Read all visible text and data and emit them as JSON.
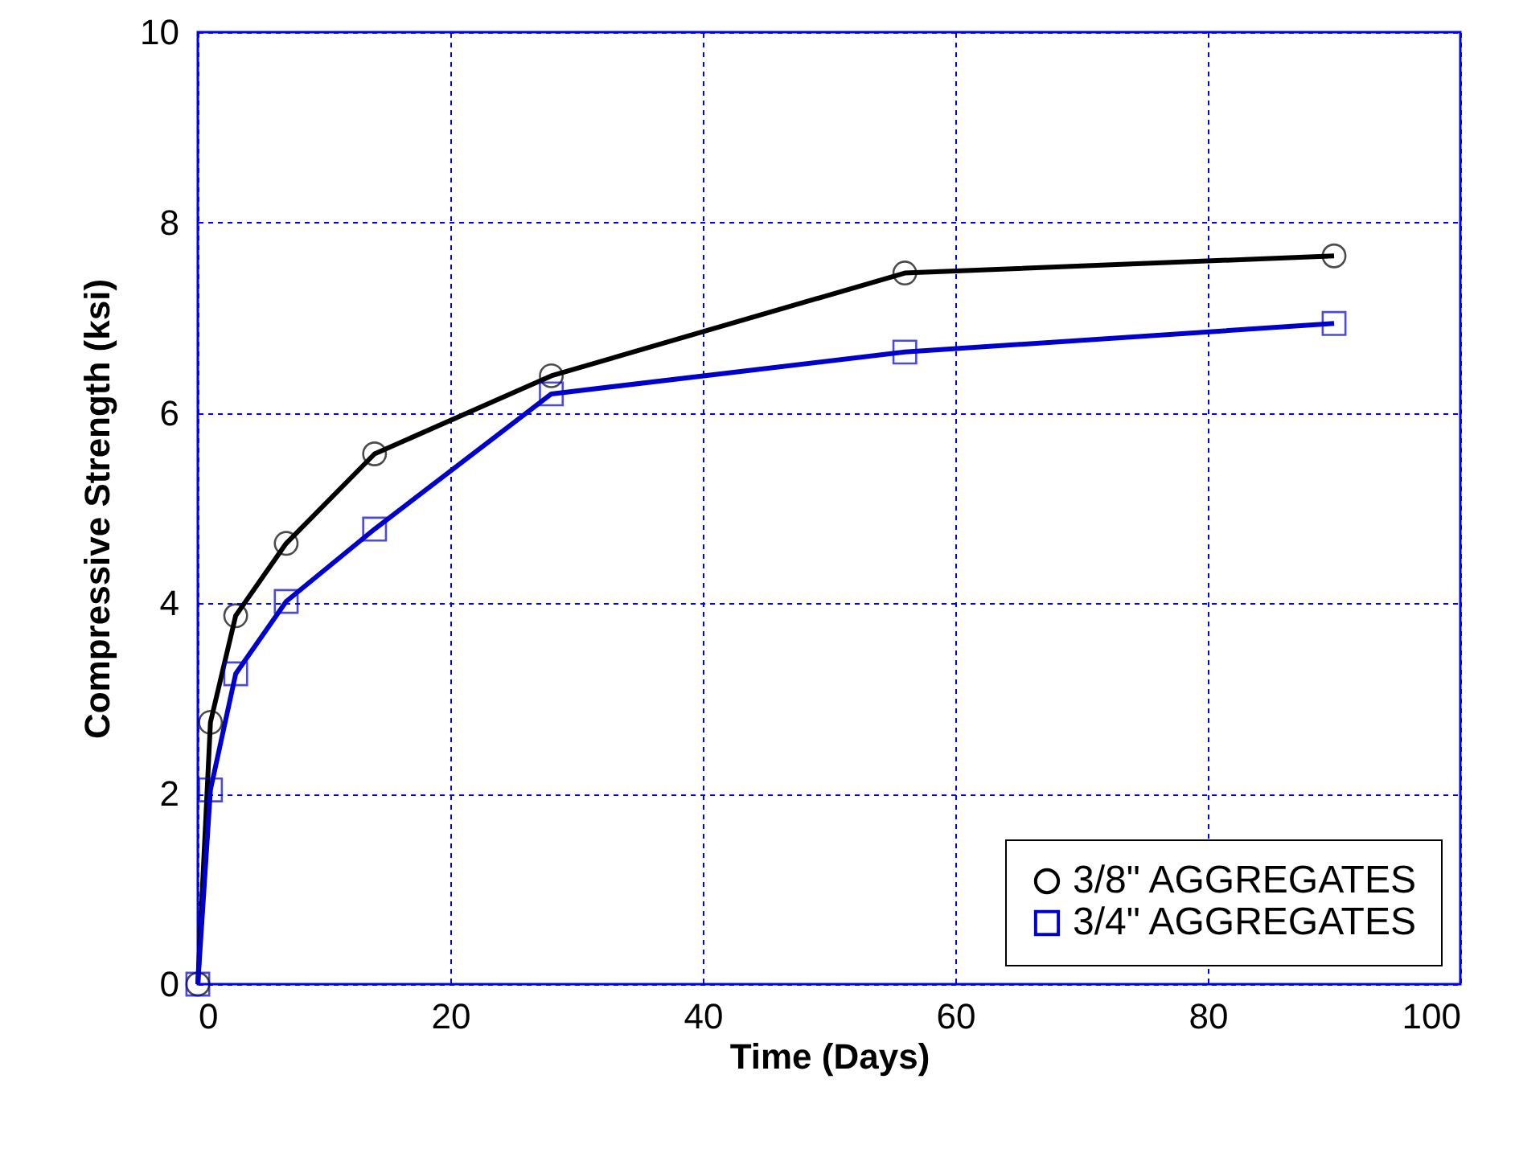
{
  "chart_data": {
    "type": "line",
    "xlabel": "Time (Days)",
    "ylabel": "Compressive Strength (ksi)",
    "xlim": [
      0,
      100
    ],
    "xticks": [
      0,
      20,
      40,
      60,
      80,
      100
    ],
    "ylim": [
      0,
      10
    ],
    "yticks": [
      0,
      2,
      4,
      6,
      8,
      10
    ],
    "grid": true,
    "legend": "bottom right",
    "line_style": "solid",
    "x": [
      0,
      1,
      3,
      7,
      14,
      28,
      56,
      90
    ],
    "series": [
      {
        "name": "3/8\" AGGREGATES",
        "color": "#000000",
        "marker": "circle",
        "values": [
          0,
          2.75,
          3.87,
          4.63,
          5.57,
          6.39,
          7.47,
          7.65
        ]
      },
      {
        "name": "3/4\" AGGREGATES",
        "color": "#0000cc",
        "marker": "square",
        "values": [
          0,
          2.04,
          3.26,
          4.02,
          4.78,
          6.2,
          6.64,
          6.94
        ]
      }
    ]
  }
}
